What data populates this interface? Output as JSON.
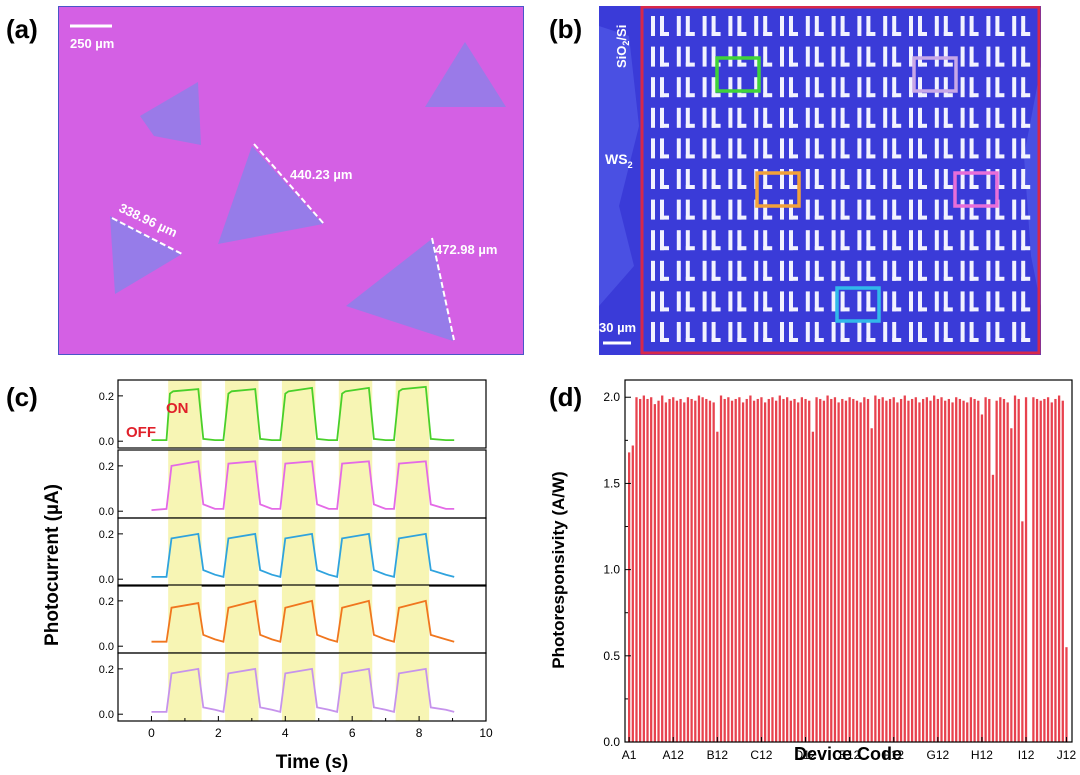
{
  "panel_labels": {
    "a": "(a)",
    "b": "(b)",
    "c": "(c)",
    "d": "(d)"
  },
  "colors": {
    "substrate_pink": "#d460e4",
    "flake_blue": "#8f7fe9",
    "frame_blue": "#4a55c8",
    "array_bg": "#3a3bd8",
    "electrode": "#f2f2ff",
    "array_border": "#d8284a",
    "bar_red": "#e8424e",
    "on_label": "#e0202a",
    "off_label": "#e0202a",
    "highlight": "#f7f5b4",
    "series_colors": [
      "#49d02a",
      "#e46ae6",
      "#2fa3de",
      "#f0761e",
      "#c693ec"
    ],
    "box_colors": [
      "#3fd43a",
      "#c7a8e8",
      "#f2a13a",
      "#e86ed9",
      "#31b9ea"
    ]
  },
  "panel_a": {
    "scale_bar_label": "250 µm",
    "measurements": [
      {
        "label": "440.23 µm"
      },
      {
        "label": "338.96 µm"
      },
      {
        "label": "472.98 µm"
      }
    ]
  },
  "panel_b": {
    "substrate_label": "SiO",
    "substrate_sub": "2",
    "substrate_rest": "/Si",
    "material_label": "WS",
    "material_sub": "2",
    "scale_bar_label": "30 µm",
    "array_rows": 11,
    "array_cols": 15
  },
  "panel_c": {
    "chart_data": {
      "type": "line",
      "title": "",
      "xlabel": "Time (s)",
      "ylabel": "Photocurrent  (µA)",
      "xlim": [
        -1,
        10
      ],
      "x_ticks": [
        0,
        2,
        4,
        6,
        8,
        10
      ],
      "x_tick_labels": [
        "0",
        "2",
        "4",
        "6",
        "8",
        "10"
      ],
      "ylim": [
        -0.03,
        0.27
      ],
      "y_ticks": [
        0.0,
        0.2
      ],
      "y_tick_labels": [
        "0.0",
        "0.2"
      ],
      "light_on_intervals": [
        [
          0.5,
          1.5
        ],
        [
          2.2,
          3.2
        ],
        [
          3.9,
          4.9
        ],
        [
          5.6,
          6.6
        ],
        [
          7.3,
          8.3
        ]
      ],
      "on_label": "ON",
      "off_label": "OFF",
      "series": [
        {
          "x": [
            0.0,
            0.45,
            0.55,
            0.65,
            1.4,
            1.55,
            1.9,
            2.15,
            2.3,
            2.4,
            3.1,
            3.25,
            3.6,
            3.85,
            4.0,
            4.1,
            4.8,
            4.95,
            5.3,
            5.55,
            5.7,
            5.8,
            6.5,
            6.65,
            7.0,
            7.25,
            7.4,
            7.5,
            8.2,
            8.35,
            8.8,
            9.05
          ],
          "y": [
            0.005,
            0.005,
            0.21,
            0.22,
            0.23,
            0.01,
            0.005,
            0.005,
            0.21,
            0.22,
            0.23,
            0.01,
            0.005,
            0.005,
            0.21,
            0.22,
            0.235,
            0.01,
            0.005,
            0.005,
            0.21,
            0.22,
            0.235,
            0.01,
            0.005,
            0.005,
            0.22,
            0.23,
            0.24,
            0.01,
            0.005,
            0.005
          ]
        },
        {
          "x": [
            0.0,
            0.45,
            0.6,
            1.4,
            1.55,
            1.9,
            2.15,
            2.3,
            3.1,
            3.25,
            3.6,
            3.85,
            4.0,
            4.8,
            4.95,
            5.3,
            5.55,
            5.7,
            6.5,
            6.65,
            7.0,
            7.25,
            7.4,
            8.2,
            8.35,
            8.8,
            9.05
          ],
          "y": [
            0.005,
            0.01,
            0.2,
            0.22,
            0.03,
            0.01,
            0.01,
            0.21,
            0.22,
            0.03,
            0.01,
            0.01,
            0.21,
            0.22,
            0.03,
            0.01,
            0.01,
            0.21,
            0.22,
            0.03,
            0.01,
            0.01,
            0.21,
            0.22,
            0.03,
            0.01,
            0.01
          ]
        },
        {
          "x": [
            0.0,
            0.45,
            0.6,
            1.4,
            1.55,
            1.9,
            2.15,
            2.3,
            3.1,
            3.25,
            3.6,
            3.85,
            4.0,
            4.8,
            4.95,
            5.3,
            5.55,
            5.7,
            6.5,
            6.65,
            7.0,
            7.25,
            7.4,
            8.2,
            8.35,
            8.8,
            9.05
          ],
          "y": [
            0.01,
            0.01,
            0.18,
            0.2,
            0.04,
            0.02,
            0.01,
            0.18,
            0.2,
            0.04,
            0.02,
            0.01,
            0.18,
            0.2,
            0.04,
            0.02,
            0.01,
            0.18,
            0.2,
            0.04,
            0.02,
            0.01,
            0.18,
            0.2,
            0.04,
            0.02,
            0.01
          ]
        },
        {
          "x": [
            0.0,
            0.45,
            0.6,
            1.4,
            1.55,
            1.9,
            2.15,
            2.3,
            3.1,
            3.25,
            3.6,
            3.85,
            4.0,
            4.8,
            4.95,
            5.3,
            5.55,
            5.7,
            6.5,
            6.65,
            7.0,
            7.25,
            7.4,
            8.2,
            8.35,
            8.8,
            9.05
          ],
          "y": [
            0.02,
            0.02,
            0.17,
            0.19,
            0.05,
            0.03,
            0.02,
            0.17,
            0.2,
            0.05,
            0.03,
            0.02,
            0.17,
            0.2,
            0.05,
            0.03,
            0.02,
            0.17,
            0.2,
            0.05,
            0.03,
            0.02,
            0.17,
            0.2,
            0.05,
            0.03,
            0.02
          ]
        },
        {
          "x": [
            0.0,
            0.45,
            0.6,
            1.4,
            1.55,
            1.9,
            2.15,
            2.3,
            3.1,
            3.25,
            3.6,
            3.85,
            4.0,
            4.8,
            4.95,
            5.3,
            5.55,
            5.7,
            6.5,
            6.65,
            7.0,
            7.25,
            7.4,
            8.2,
            8.35,
            8.8,
            9.05
          ],
          "y": [
            0.01,
            0.01,
            0.18,
            0.2,
            0.03,
            0.02,
            0.01,
            0.18,
            0.2,
            0.03,
            0.02,
            0.01,
            0.18,
            0.2,
            0.03,
            0.02,
            0.01,
            0.18,
            0.2,
            0.03,
            0.02,
            0.01,
            0.18,
            0.2,
            0.03,
            0.02,
            0.01
          ]
        }
      ]
    }
  },
  "panel_d": {
    "chart_data": {
      "type": "bar",
      "title": "",
      "xlabel": "Device Code",
      "ylabel": "Photoresponsivity (A/W)",
      "ylim": [
        0,
        2.1
      ],
      "y_ticks": [
        0.0,
        0.5,
        1.0,
        1.5,
        2.0
      ],
      "y_tick_labels": [
        "0.0",
        "0.5",
        "1.0",
        "1.5",
        "2.0"
      ],
      "x_tick_labels": [
        "A1",
        "A12",
        "B12",
        "C12",
        "D12",
        "E12",
        "F12",
        "G12",
        "H12",
        "I12",
        "J12"
      ],
      "x_tick_indices": [
        0,
        12,
        24,
        36,
        48,
        60,
        72,
        84,
        96,
        108,
        119
      ],
      "values": [
        1.68,
        1.72,
        2.0,
        1.99,
        2.01,
        1.99,
        2.0,
        1.96,
        1.98,
        2.01,
        1.97,
        1.99,
        2.0,
        1.98,
        1.99,
        1.97,
        2.0,
        1.99,
        1.98,
        2.01,
        2.0,
        1.99,
        1.98,
        1.97,
        1.8,
        2.01,
        1.99,
        2.0,
        1.98,
        1.99,
        2.0,
        1.97,
        1.99,
        2.01,
        1.98,
        1.99,
        2.0,
        1.97,
        1.99,
        2.0,
        1.98,
        2.01,
        1.99,
        2.0,
        1.98,
        1.99,
        1.97,
        2.0,
        1.99,
        1.98,
        1.8,
        2.0,
        1.99,
        1.98,
        2.01,
        1.99,
        2.0,
        1.97,
        1.99,
        1.98,
        2.0,
        1.99,
        1.98,
        1.97,
        2.0,
        1.99,
        1.82,
        2.01,
        1.99,
        2.0,
        1.98,
        1.99,
        2.0,
        1.97,
        1.99,
        2.01,
        1.98,
        1.99,
        2.0,
        1.97,
        1.99,
        2.0,
        1.98,
        2.01,
        1.99,
        2.0,
        1.98,
        1.99,
        1.97,
        2.0,
        1.99,
        1.98,
        1.97,
        2.0,
        1.99,
        1.98,
        1.9,
        2.0,
        1.99,
        1.55,
        1.98,
        2.0,
        1.99,
        1.97,
        1.82,
        2.01,
        1.99,
        1.28,
        2.0,
        0.0,
        2.0,
        1.99,
        1.98,
        1.99,
        2.0,
        1.97,
        1.99,
        2.01,
        1.98,
        0.55
      ]
    }
  }
}
